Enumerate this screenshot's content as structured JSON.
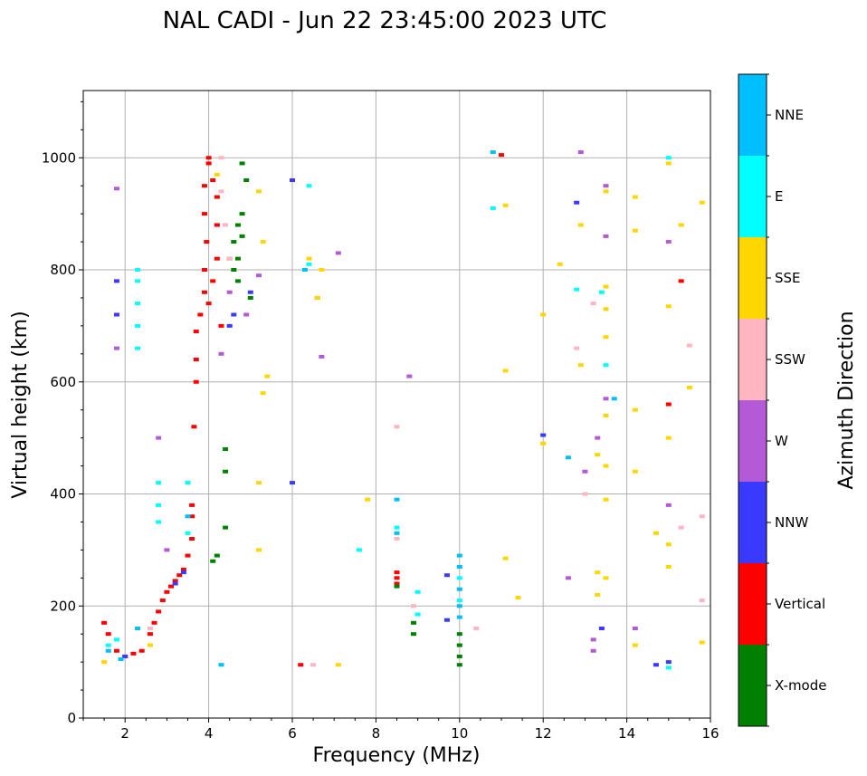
{
  "chart_data": {
    "type": "scatter",
    "title": "NAL CADI - Jun 22 23:45:00 2023 UTC",
    "xlabel": "Frequency (MHz)",
    "ylabel": "Virtual height (km)",
    "xlim": [
      1,
      16
    ],
    "ylim": [
      0,
      1120
    ],
    "xticks": [
      2,
      4,
      6,
      8,
      10,
      12,
      14,
      16
    ],
    "yticks": [
      0,
      200,
      400,
      600,
      800,
      1000
    ],
    "grid": true,
    "colorbar": {
      "label": "Azimuth Direction",
      "categories": [
        {
          "name": "X-mode",
          "color": "#008000"
        },
        {
          "name": "Vertical",
          "color": "#ff0000"
        },
        {
          "name": "NNW",
          "color": "#3a3aff"
        },
        {
          "name": "W",
          "color": "#b45ad6"
        },
        {
          "name": "SSW",
          "color": "#ffb6c1"
        },
        {
          "name": "SSE",
          "color": "#ffd700"
        },
        {
          "name": "E",
          "color": "#00ffff"
        },
        {
          "name": "NNE",
          "color": "#00bfff"
        }
      ]
    },
    "series": [
      {
        "name": "Vertical",
        "points": [
          [
            1.5,
            170
          ],
          [
            1.6,
            150
          ],
          [
            1.8,
            120
          ],
          [
            2.0,
            110
          ],
          [
            2.2,
            115
          ],
          [
            2.4,
            120
          ],
          [
            2.6,
            150
          ],
          [
            2.7,
            170
          ],
          [
            2.8,
            190
          ],
          [
            2.9,
            210
          ],
          [
            3.0,
            225
          ],
          [
            3.1,
            235
          ],
          [
            3.2,
            245
          ],
          [
            3.3,
            255
          ],
          [
            3.4,
            265
          ],
          [
            3.5,
            290
          ],
          [
            3.6,
            320
          ],
          [
            3.6,
            360
          ],
          [
            3.6,
            380
          ],
          [
            3.65,
            520
          ],
          [
            3.7,
            600
          ],
          [
            3.7,
            640
          ],
          [
            3.7,
            690
          ],
          [
            3.8,
            720
          ],
          [
            3.9,
            760
          ],
          [
            3.9,
            800
          ],
          [
            3.95,
            850
          ],
          [
            3.9,
            900
          ],
          [
            3.9,
            950
          ],
          [
            4.0,
            990
          ],
          [
            4.0,
            1000
          ],
          [
            4.1,
            960
          ],
          [
            4.2,
            880
          ],
          [
            4.2,
            820
          ],
          [
            4.1,
            780
          ],
          [
            4.0,
            740
          ],
          [
            4.3,
            700
          ],
          [
            4.2,
            930
          ],
          [
            6.2,
            95
          ],
          [
            8.5,
            260
          ],
          [
            8.5,
            250
          ],
          [
            8.5,
            240
          ],
          [
            11.0,
            1005
          ],
          [
            15.0,
            560
          ],
          [
            15.3,
            780
          ]
        ]
      },
      {
        "name": "X-mode",
        "points": [
          [
            4.4,
            480
          ],
          [
            4.4,
            440
          ],
          [
            4.4,
            340
          ],
          [
            4.1,
            280
          ],
          [
            4.2,
            290
          ],
          [
            4.5,
            820
          ],
          [
            4.6,
            850
          ],
          [
            4.7,
            880
          ],
          [
            4.8,
            900
          ],
          [
            4.8,
            860
          ],
          [
            4.6,
            800
          ],
          [
            4.7,
            780
          ],
          [
            4.9,
            960
          ],
          [
            4.8,
            990
          ],
          [
            8.5,
            235
          ],
          [
            8.9,
            170
          ],
          [
            8.9,
            150
          ],
          [
            10.0,
            150
          ],
          [
            10.0,
            130
          ],
          [
            10.0,
            110
          ],
          [
            10.0,
            95
          ],
          [
            5.0,
            750
          ],
          [
            4.7,
            820
          ]
        ]
      },
      {
        "name": "NNW",
        "points": [
          [
            1.8,
            780
          ],
          [
            1.8,
            720
          ],
          [
            2.0,
            110
          ],
          [
            3.2,
            240
          ],
          [
            3.4,
            260
          ],
          [
            4.5,
            700
          ],
          [
            4.6,
            720
          ],
          [
            5.0,
            760
          ],
          [
            6.0,
            420
          ],
          [
            6.0,
            960
          ],
          [
            9.7,
            255
          ],
          [
            9.7,
            175
          ],
          [
            12.0,
            505
          ],
          [
            12.8,
            920
          ],
          [
            13.4,
            160
          ],
          [
            14.7,
            95
          ],
          [
            15.0,
            100
          ]
        ]
      },
      {
        "name": "W",
        "points": [
          [
            1.8,
            945
          ],
          [
            1.8,
            660
          ],
          [
            2.8,
            500
          ],
          [
            3.0,
            300
          ],
          [
            4.3,
            650
          ],
          [
            4.5,
            760
          ],
          [
            4.9,
            720
          ],
          [
            5.2,
            790
          ],
          [
            6.6,
            750
          ],
          [
            6.7,
            645
          ],
          [
            7.1,
            830
          ],
          [
            8.8,
            610
          ],
          [
            12.9,
            1010
          ],
          [
            13.0,
            440
          ],
          [
            13.5,
            950
          ],
          [
            13.5,
            860
          ],
          [
            13.5,
            570
          ],
          [
            13.3,
            500
          ],
          [
            12.6,
            250
          ],
          [
            13.2,
            140
          ],
          [
            13.2,
            120
          ],
          [
            15.0,
            380
          ],
          [
            15.0,
            850
          ],
          [
            14.2,
            160
          ]
        ]
      },
      {
        "name": "SSW",
        "points": [
          [
            2.6,
            160
          ],
          [
            4.3,
            1000
          ],
          [
            4.3,
            940
          ],
          [
            4.4,
            880
          ],
          [
            4.5,
            820
          ],
          [
            6.5,
            95
          ],
          [
            8.5,
            520
          ],
          [
            8.5,
            320
          ],
          [
            8.9,
            200
          ],
          [
            10.4,
            160
          ],
          [
            12.8,
            660
          ],
          [
            13.0,
            400
          ],
          [
            13.2,
            740
          ],
          [
            15.3,
            340
          ],
          [
            15.5,
            665
          ],
          [
            15.8,
            210
          ],
          [
            15.8,
            360
          ],
          [
            15.3,
            880
          ]
        ]
      },
      {
        "name": "SSE",
        "points": [
          [
            1.5,
            100
          ],
          [
            2.6,
            130
          ],
          [
            4.2,
            970
          ],
          [
            5.2,
            940
          ],
          [
            5.3,
            850
          ],
          [
            5.3,
            580
          ],
          [
            5.4,
            610
          ],
          [
            5.2,
            420
          ],
          [
            5.2,
            300
          ],
          [
            6.4,
            820
          ],
          [
            6.6,
            750
          ],
          [
            6.7,
            800
          ],
          [
            7.1,
            95
          ],
          [
            7.8,
            390
          ],
          [
            11.1,
            915
          ],
          [
            11.1,
            620
          ],
          [
            11.1,
            285
          ],
          [
            11.4,
            215
          ],
          [
            12.0,
            720
          ],
          [
            12.0,
            490
          ],
          [
            12.4,
            810
          ],
          [
            12.9,
            880
          ],
          [
            12.9,
            630
          ],
          [
            13.3,
            470
          ],
          [
            13.5,
            940
          ],
          [
            13.5,
            770
          ],
          [
            13.5,
            730
          ],
          [
            13.5,
            680
          ],
          [
            13.5,
            540
          ],
          [
            13.5,
            450
          ],
          [
            13.5,
            390
          ],
          [
            13.5,
            250
          ],
          [
            13.3,
            260
          ],
          [
            13.3,
            220
          ],
          [
            14.2,
            930
          ],
          [
            14.2,
            870
          ],
          [
            14.2,
            550
          ],
          [
            14.2,
            440
          ],
          [
            14.2,
            130
          ],
          [
            14.7,
            330
          ],
          [
            15.0,
            990
          ],
          [
            15.0,
            735
          ],
          [
            15.0,
            500
          ],
          [
            15.0,
            310
          ],
          [
            15.0,
            270
          ],
          [
            15.3,
            880
          ],
          [
            15.5,
            590
          ],
          [
            15.8,
            920
          ],
          [
            15.8,
            135
          ]
        ]
      },
      {
        "name": "E",
        "points": [
          [
            1.6,
            130
          ],
          [
            1.8,
            140
          ],
          [
            2.3,
            800
          ],
          [
            2.3,
            780
          ],
          [
            2.3,
            740
          ],
          [
            2.3,
            700
          ],
          [
            2.3,
            660
          ],
          [
            2.8,
            420
          ],
          [
            2.8,
            380
          ],
          [
            2.8,
            350
          ],
          [
            3.5,
            420
          ],
          [
            3.5,
            330
          ],
          [
            6.4,
            950
          ],
          [
            6.4,
            810
          ],
          [
            7.6,
            300
          ],
          [
            8.5,
            340
          ],
          [
            9.0,
            225
          ],
          [
            9.0,
            185
          ],
          [
            10.0,
            250
          ],
          [
            10.0,
            210
          ],
          [
            10.8,
            910
          ],
          [
            12.8,
            765
          ],
          [
            13.5,
            630
          ],
          [
            13.4,
            760
          ],
          [
            15.0,
            90
          ],
          [
            15.0,
            1000
          ]
        ]
      },
      {
        "name": "NNE",
        "points": [
          [
            1.6,
            120
          ],
          [
            1.9,
            105
          ],
          [
            2.3,
            160
          ],
          [
            3.5,
            360
          ],
          [
            4.3,
            95
          ],
          [
            6.3,
            800
          ],
          [
            8.5,
            390
          ],
          [
            8.5,
            330
          ],
          [
            10.0,
            290
          ],
          [
            10.0,
            270
          ],
          [
            10.0,
            230
          ],
          [
            10.0,
            200
          ],
          [
            10.0,
            180
          ],
          [
            10.8,
            1010
          ],
          [
            12.6,
            465
          ],
          [
            13.7,
            570
          ]
        ]
      }
    ]
  }
}
